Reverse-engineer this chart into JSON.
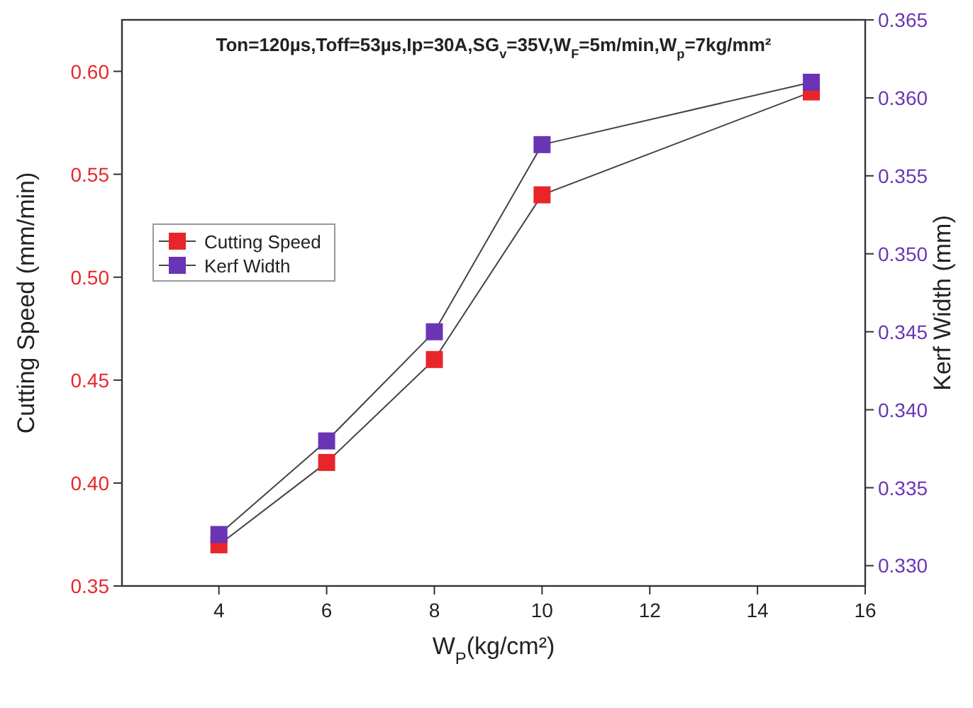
{
  "chart_data": {
    "type": "line",
    "title": "Ton=120µs,Toff=53µs,Ip=30A,SG$_{v}$=35V,W$_{F}$=5m/min,W$_{p}$=7kg/mm²",
    "xlabel": "W$_{P}$(kg/cm²)",
    "ylabel": "Cutting Speed (mm/min)",
    "y2label": "Kerf Width (mm)",
    "x": [
      4,
      6,
      8,
      10,
      15
    ],
    "series": [
      {
        "name": "Cutting Speed",
        "color": "#e8262a",
        "values": [
          0.37,
          0.41,
          0.46,
          0.54,
          0.59
        ]
      },
      {
        "name": "Kerf Width",
        "color": "#6a35b5",
        "values": [
          0.332,
          0.338,
          0.345,
          0.357,
          0.361
        ],
        "axis": "y2"
      }
    ],
    "xlim": [
      2.2,
      16
    ],
    "xticks": [
      4,
      6,
      8,
      10,
      12,
      14,
      16
    ],
    "ylim": [
      0.35,
      0.625
    ],
    "yticks": [
      0.35,
      {
        "value": 0.4,
        "label": "0.40"
      },
      0.45,
      {
        "value": 0.5,
        "label": "0.50"
      },
      0.55,
      {
        "value": 0.6,
        "label": "0.60"
      }
    ],
    "y2lim": [
      0.3287,
      0.365
    ],
    "y2ticks": [
      {
        "value": 0.33,
        "label": "0.330"
      },
      0.335,
      {
        "value": 0.34,
        "label": "0.340"
      },
      0.345,
      {
        "value": 0.35,
        "label": "0.350"
      },
      0.355,
      {
        "value": 0.36,
        "label": "0.360"
      },
      0.365
    ],
    "marker": "square",
    "line_style": "solid",
    "legend": "left",
    "grid": false
  }
}
